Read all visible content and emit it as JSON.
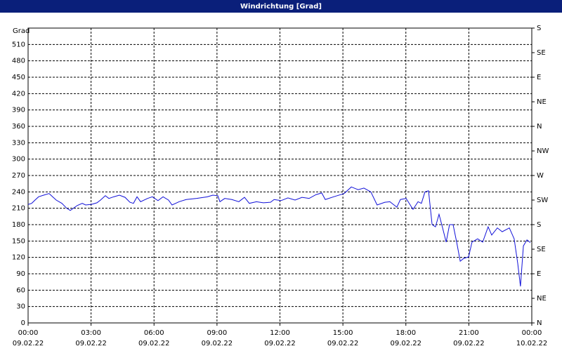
{
  "chart_data": {
    "type": "line",
    "title": "Windrichtung [Grad]",
    "y_label": "Grad",
    "x": [
      0,
      0.17,
      0.33,
      0.5,
      0.74,
      1.0,
      1.17,
      1.34,
      1.61,
      1.84,
      2.01,
      2.34,
      2.58,
      2.74,
      3.01,
      3.28,
      3.45,
      3.68,
      3.85,
      4.08,
      4.35,
      4.62,
      4.85,
      5.02,
      5.19,
      5.36,
      5.69,
      5.92,
      6.19,
      6.43,
      6.69,
      6.86,
      7.2,
      7.53,
      8.03,
      8.54,
      8.8,
      9.04,
      9.14,
      9.37,
      9.71,
      10.04,
      10.31,
      10.54,
      10.88,
      11.21,
      11.55,
      11.72,
      12.05,
      12.38,
      12.72,
      13.05,
      13.39,
      13.72,
      13.99,
      14.16,
      14.56,
      15.06,
      15.4,
      15.73,
      16.0,
      16.33,
      16.63,
      17.0,
      17.24,
      17.57,
      17.74,
      18.01,
      18.34,
      18.58,
      18.74,
      18.91,
      19.08,
      19.25,
      19.41,
      19.58,
      19.75,
      19.92,
      20.08,
      20.25,
      20.42,
      20.59,
      20.75,
      20.99,
      21.15,
      21.42,
      21.66,
      21.92,
      22.09,
      22.36,
      22.59,
      22.93,
      23.16,
      23.33,
      23.46,
      23.6,
      23.77,
      23.93
    ],
    "series": [
      {
        "name": "Windrichtung",
        "color": "#1010d8",
        "values": [
          217,
          219,
          225,
          231,
          234,
          237,
          231,
          225,
          219,
          210,
          206,
          215,
          219,
          216,
          217,
          220,
          225,
          233,
          228,
          231,
          234,
          230,
          221,
          219,
          231,
          222,
          228,
          231,
          224,
          231,
          225,
          216,
          222,
          226,
          228,
          231,
          234,
          233,
          222,
          228,
          226,
          222,
          230,
          219,
          222,
          220,
          221,
          226,
          224,
          229,
          225,
          230,
          228,
          235,
          238,
          226,
          231,
          237,
          249,
          244,
          247,
          240,
          216,
          221,
          222,
          212,
          226,
          228,
          208,
          222,
          219,
          240,
          242,
          180,
          176,
          199,
          174,
          148,
          180,
          180,
          148,
          113,
          118,
          121,
          148,
          154,
          148,
          176,
          161,
          174,
          167,
          174,
          154,
          109,
          67,
          141,
          152,
          147
        ]
      }
    ],
    "xlim": [
      0,
      24
    ],
    "ylim": [
      0,
      540
    ],
    "y2lim": [
      0,
      540
    ],
    "xticks": [
      {
        "value": 0,
        "label": "00:00",
        "date": "09.02.22"
      },
      {
        "value": 3,
        "label": "03:00",
        "date": "09.02.22"
      },
      {
        "value": 6,
        "label": "06:00",
        "date": "09.02.22"
      },
      {
        "value": 9,
        "label": "09:00",
        "date": "09.02.22"
      },
      {
        "value": 12,
        "label": "12:00",
        "date": "09.02.22"
      },
      {
        "value": 15,
        "label": "15:00",
        "date": "09.02.22"
      },
      {
        "value": 18,
        "label": "18:00",
        "date": "09.02.22"
      },
      {
        "value": 21,
        "label": "21:00",
        "date": "09.02.22"
      },
      {
        "value": 24,
        "label": "00:00",
        "date": "10.02.22"
      }
    ],
    "yticks": [
      0,
      30,
      60,
      90,
      120,
      150,
      180,
      210,
      240,
      270,
      300,
      330,
      360,
      390,
      420,
      450,
      480,
      510
    ],
    "y2ticks": [
      {
        "value": 0,
        "label": "N"
      },
      {
        "value": 45,
        "label": "NE"
      },
      {
        "value": 90,
        "label": "E"
      },
      {
        "value": 135,
        "label": "SE"
      },
      {
        "value": 180,
        "label": "S"
      },
      {
        "value": 225,
        "label": "SW"
      },
      {
        "value": 270,
        "label": "W"
      },
      {
        "value": 315,
        "label": "NW"
      },
      {
        "value": 360,
        "label": "N"
      },
      {
        "value": 405,
        "label": "NE"
      },
      {
        "value": 450,
        "label": "E"
      },
      {
        "value": 495,
        "label": "SE"
      },
      {
        "value": 540,
        "label": "S"
      }
    ],
    "grid": true
  }
}
